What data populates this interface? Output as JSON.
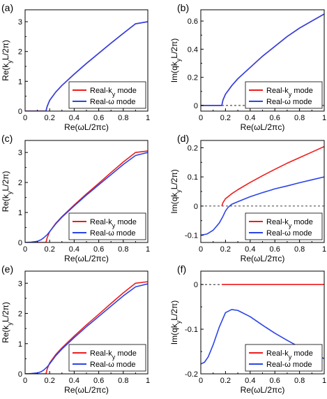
{
  "colors": {
    "real_k": "#ee1c1c",
    "real_w": "#2b44e8"
  },
  "chart_data": [
    {
      "id": "a",
      "type": "line",
      "panel_label": "(a)",
      "xlabel": "Re(ωL/2πc)",
      "ylabel": "Re(kyL/2π)",
      "ylabel_sub": "y",
      "xlim": [
        0,
        1
      ],
      "ylim": [
        0,
        3.4
      ],
      "xticks": [
        0,
        0.2,
        0.4,
        0.6,
        0.8,
        1
      ],
      "xtick_labels": [
        "0",
        "0.2",
        "0.4",
        "0.6",
        "0.8",
        "1"
      ],
      "yticks": [
        0,
        1,
        2,
        3
      ],
      "ytick_labels": [
        "0",
        "1",
        "2",
        "3"
      ],
      "zero_dashed": false,
      "legend_position": "bottom-right",
      "legend": [
        "Real-ky mode",
        "Real-ω mode"
      ],
      "series": [
        {
          "name": "Real-ky mode",
          "color": "#ee1c1c",
          "x": [
            0,
            0.16,
            0.17,
            0.18,
            0.2,
            0.25,
            0.3,
            0.4,
            0.5,
            0.6,
            0.7,
            0.8,
            0.9,
            1
          ],
          "y": [
            0,
            0,
            0,
            0.16,
            0.36,
            0.64,
            0.86,
            1.24,
            1.6,
            1.94,
            2.28,
            2.61,
            2.93,
            3.0
          ]
        },
        {
          "name": "Real-ω mode",
          "color": "#2b44e8",
          "x": [
            0,
            0.16,
            0.17,
            0.18,
            0.2,
            0.25,
            0.3,
            0.4,
            0.5,
            0.6,
            0.7,
            0.8,
            0.9,
            1
          ],
          "y": [
            0,
            0,
            0,
            0.16,
            0.36,
            0.64,
            0.86,
            1.24,
            1.6,
            1.94,
            2.28,
            2.61,
            2.93,
            3.0
          ]
        }
      ]
    },
    {
      "id": "b",
      "type": "line",
      "panel_label": "(b)",
      "xlabel": "Re(ωL/2πc)",
      "ylabel": "Im(qkyL/2π)",
      "ylabel_sub": "y",
      "xlim": [
        0,
        1
      ],
      "ylim": [
        -0.04,
        0.68
      ],
      "xticks": [
        0,
        0.2,
        0.4,
        0.6,
        0.8,
        1
      ],
      "xtick_labels": [
        "0",
        "0.2",
        "0.4",
        "0.6",
        "0.8",
        "1"
      ],
      "yticks": [
        0,
        0.2,
        0.4,
        0.6
      ],
      "ytick_labels": [
        "0",
        "0.2",
        "0.4",
        "0.6"
      ],
      "zero_dashed": true,
      "legend_position": "bottom-right",
      "legend": [
        "Real-ky mode",
        "Real-ω mode"
      ],
      "series": [
        {
          "name": "Real-ky mode",
          "color": "#ee1c1c",
          "x": [
            0,
            0.17,
            0.18,
            0.2,
            0.25,
            0.3,
            0.4,
            0.5,
            0.6,
            0.7,
            0.8,
            0.9,
            1
          ],
          "y": [
            0,
            0,
            0.04,
            0.08,
            0.14,
            0.19,
            0.27,
            0.35,
            0.42,
            0.49,
            0.55,
            0.6,
            0.65
          ]
        },
        {
          "name": "Real-ω mode",
          "color": "#2b44e8",
          "x": [
            0,
            0.17,
            0.18,
            0.2,
            0.25,
            0.3,
            0.4,
            0.5,
            0.6,
            0.7,
            0.8,
            0.9,
            1
          ],
          "y": [
            0,
            0,
            0.04,
            0.08,
            0.14,
            0.19,
            0.27,
            0.35,
            0.42,
            0.49,
            0.55,
            0.6,
            0.65
          ]
        }
      ]
    },
    {
      "id": "c",
      "type": "line",
      "panel_label": "(c)",
      "xlabel": "Re(ωL/2πc)",
      "ylabel": "Re(kyL/2π)",
      "ylabel_sub": "y",
      "xlim": [
        0,
        1
      ],
      "ylim": [
        0,
        3.4
      ],
      "xticks": [
        0,
        0.2,
        0.4,
        0.6,
        0.8,
        1
      ],
      "xtick_labels": [
        "0",
        "0.2",
        "0.4",
        "0.6",
        "0.8",
        "1"
      ],
      "yticks": [
        0,
        1,
        2,
        3
      ],
      "ytick_labels": [
        "0",
        "1",
        "2",
        "3"
      ],
      "zero_dashed": false,
      "legend_position": "bottom-right",
      "legend": [
        "Real-ky mode",
        "Real-ω mode"
      ],
      "series": [
        {
          "name": "Real-ky mode",
          "color": "#ee1c1c",
          "x": [
            0,
            0.16,
            0.17,
            0.18,
            0.2,
            0.25,
            0.3,
            0.4,
            0.5,
            0.6,
            0.7,
            0.8,
            0.9,
            1
          ],
          "y": [
            0,
            0,
            0,
            0.16,
            0.36,
            0.64,
            0.86,
            1.25,
            1.62,
            1.97,
            2.33,
            2.68,
            3.0,
            3.05
          ]
        },
        {
          "name": "Real-ω mode",
          "color": "#2b44e8",
          "x": [
            0,
            0.05,
            0.1,
            0.13,
            0.15,
            0.18,
            0.2,
            0.25,
            0.3,
            0.4,
            0.5,
            0.6,
            0.7,
            0.8,
            0.9,
            1
          ],
          "y": [
            0,
            0.01,
            0.04,
            0.09,
            0.15,
            0.26,
            0.36,
            0.62,
            0.84,
            1.22,
            1.58,
            1.92,
            2.26,
            2.6,
            2.9,
            3.0
          ]
        }
      ]
    },
    {
      "id": "d",
      "type": "line",
      "panel_label": "(d)",
      "xlabel": "Re(ωL/2πc)",
      "ylabel": "Im(qkyL/2π)",
      "ylabel_sub": "y",
      "xlim": [
        0,
        1
      ],
      "ylim": [
        -0.125,
        0.225
      ],
      "xticks": [
        0,
        0.2,
        0.4,
        0.6,
        0.8,
        1
      ],
      "xtick_labels": [
        "0",
        "0.2",
        "0.4",
        "0.6",
        "0.8",
        "1"
      ],
      "yticks": [
        -0.1,
        0,
        0.1,
        0.2
      ],
      "ytick_labels": [
        "-0.1",
        "0",
        "0.1",
        "0.2"
      ],
      "zero_dashed": true,
      "legend_position": "bottom-right",
      "legend": [
        "Real-ky mode",
        "Real-ω mode"
      ],
      "series": [
        {
          "name": "Real-ky mode",
          "color": "#ee1c1c",
          "x": [
            0.17,
            0.18,
            0.2,
            0.25,
            0.3,
            0.4,
            0.5,
            0.6,
            0.7,
            0.8,
            0.9,
            1
          ],
          "y": [
            0,
            0.012,
            0.025,
            0.042,
            0.056,
            0.081,
            0.104,
            0.126,
            0.147,
            0.166,
            0.185,
            0.204
          ]
        },
        {
          "name": "Real-ω mode",
          "color": "#2b44e8",
          "x": [
            0,
            0.05,
            0.1,
            0.15,
            0.18,
            0.2,
            0.22,
            0.25,
            0.3,
            0.4,
            0.5,
            0.6,
            0.7,
            0.8,
            0.9,
            1
          ],
          "y": [
            -0.1,
            -0.096,
            -0.083,
            -0.058,
            -0.035,
            -0.017,
            -0.005,
            0.006,
            0.015,
            0.032,
            0.046,
            0.059,
            0.069,
            0.08,
            0.09,
            0.1
          ]
        }
      ]
    },
    {
      "id": "e",
      "type": "line",
      "panel_label": "(e)",
      "xlabel": "Re(ωL/2πc)",
      "ylabel": "Re(kyL/2π)",
      "ylabel_sub": "y",
      "xlim": [
        0,
        1
      ],
      "ylim": [
        0,
        3.4
      ],
      "xticks": [
        0,
        0.2,
        0.4,
        0.6,
        0.8,
        1
      ],
      "xtick_labels": [
        "0",
        "0.2",
        "0.4",
        "0.6",
        "0.8",
        "1"
      ],
      "yticks": [
        0,
        1,
        2,
        3
      ],
      "ytick_labels": [
        "0",
        "1",
        "2",
        "3"
      ],
      "zero_dashed": false,
      "legend_position": "bottom-right",
      "legend": [
        "Real-ky mode",
        "Real-ω mode"
      ],
      "series": [
        {
          "name": "Real-ky mode",
          "color": "#ee1c1c",
          "x": [
            0,
            0.16,
            0.17,
            0.18,
            0.2,
            0.25,
            0.3,
            0.4,
            0.5,
            0.6,
            0.7,
            0.8,
            0.9,
            1
          ],
          "y": [
            0,
            0,
            0,
            0.16,
            0.36,
            0.64,
            0.86,
            1.25,
            1.62,
            1.97,
            2.33,
            2.68,
            3.0,
            3.05
          ]
        },
        {
          "name": "Real-ω mode",
          "color": "#2b44e8",
          "x": [
            0,
            0.05,
            0.1,
            0.13,
            0.15,
            0.18,
            0.2,
            0.25,
            0.3,
            0.4,
            0.5,
            0.6,
            0.7,
            0.8,
            0.9,
            1
          ],
          "y": [
            0,
            0.01,
            0.03,
            0.07,
            0.12,
            0.23,
            0.33,
            0.6,
            0.82,
            1.2,
            1.56,
            1.9,
            2.24,
            2.58,
            2.88,
            2.98
          ]
        }
      ]
    },
    {
      "id": "f",
      "type": "line",
      "panel_label": "(f)",
      "xlabel": "Re(ωL/2πc)",
      "ylabel": "Im(qkyL/2π)",
      "ylabel_sub": "y",
      "xlim": [
        0,
        1
      ],
      "ylim": [
        -0.2,
        0.03
      ],
      "xticks": [
        0,
        0.2,
        0.4,
        0.6,
        0.8,
        1
      ],
      "xtick_labels": [
        "0",
        "0.2",
        "0.4",
        "0.6",
        "0.8",
        "1"
      ],
      "yticks": [
        -0.2,
        -0.1,
        0
      ],
      "ytick_labels": [
        "-0.2",
        "-0.1",
        "0"
      ],
      "zero_dashed": true,
      "legend_position": "bottom-right",
      "legend": [
        "Real-ky mode",
        "Real-ω mode"
      ],
      "series": [
        {
          "name": "Real-ky mode",
          "color": "#ee1c1c",
          "x": [
            0.17,
            1
          ],
          "y": [
            0,
            0
          ]
        },
        {
          "name": "Real-ω mode",
          "color": "#2b44e8",
          "x": [
            0,
            0.03,
            0.06,
            0.1,
            0.15,
            0.2,
            0.25,
            0.3,
            0.4,
            0.5,
            0.6,
            0.7,
            0.8,
            0.9,
            1
          ],
          "y": [
            -0.178,
            -0.174,
            -0.162,
            -0.135,
            -0.095,
            -0.063,
            -0.056,
            -0.058,
            -0.072,
            -0.091,
            -0.109,
            -0.125,
            -0.14,
            -0.153,
            -0.166
          ]
        }
      ]
    }
  ]
}
